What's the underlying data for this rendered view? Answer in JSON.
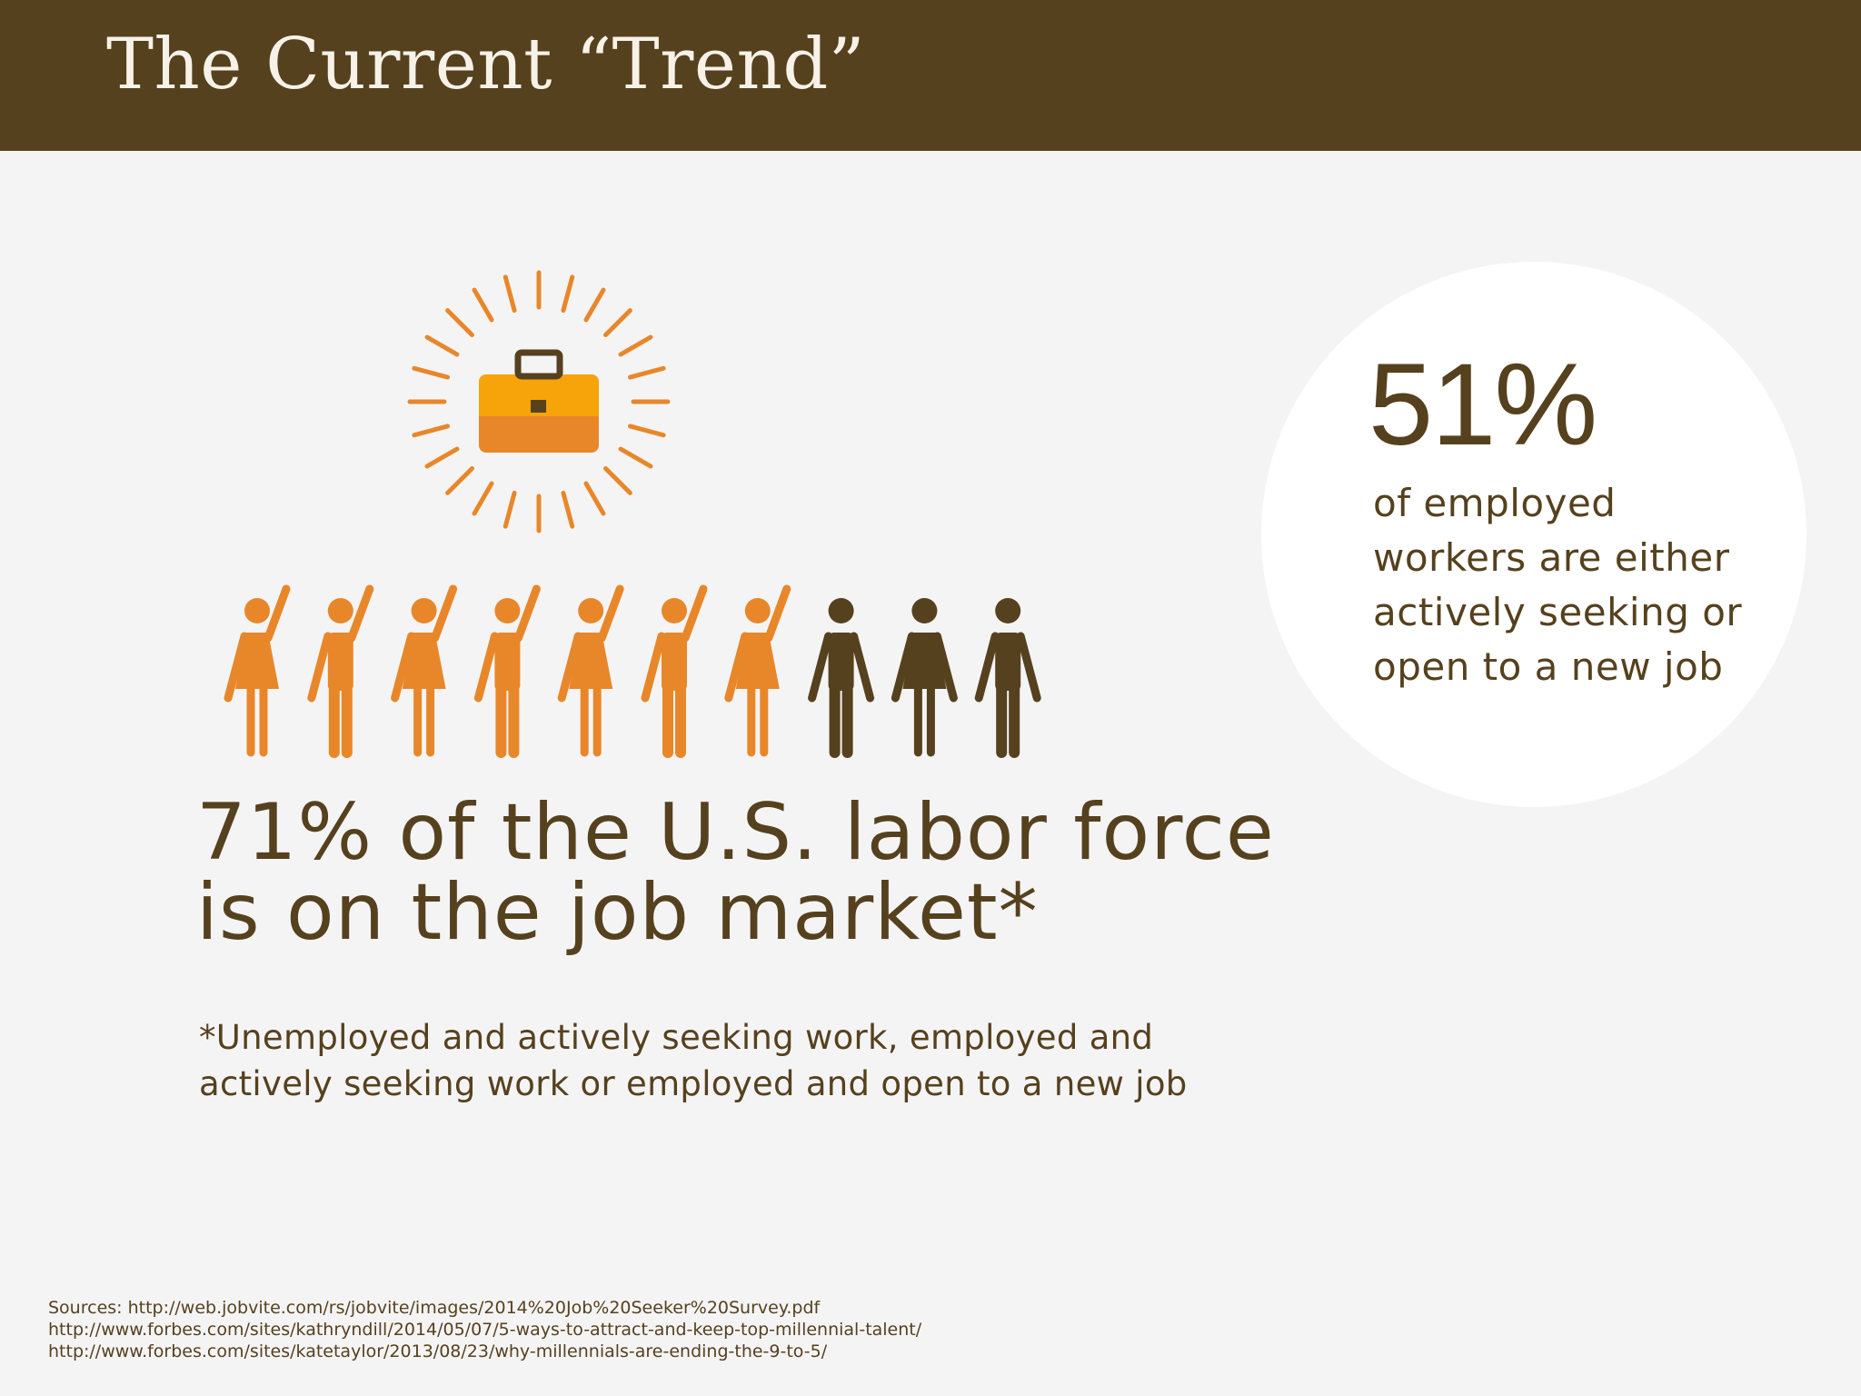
{
  "header": {
    "title": "The Current “Trend”"
  },
  "stat": {
    "value": "51%",
    "description": "of employed workers are either actively seeking or open to a new job"
  },
  "headline": "71% of the U.S. labor force is on the job market*",
  "footnote": "*Unemployed and actively seeking work, employed and actively seeking work or employed and open to a new job",
  "sources": {
    "line1": "Sources: http://web.jobvite.com/rs/jobvite/images/2014%20Job%20Seeker%20Survey.pdf",
    "line2": "http://www.forbes.com/sites/kathryndill/2014/05/07/5-ways-to-attract-and-keep-top-millennial-talent/",
    "line3": "http://www.forbes.com/sites/katetaylor/2013/08/23/why-millennials-are-ending-the-9-to-5/"
  },
  "icons": {
    "illustration": "briefcase-sun-icon",
    "figure": "person-icon"
  },
  "people": [
    {
      "role": "woman",
      "raised": true
    },
    {
      "role": "man",
      "raised": true
    },
    {
      "role": "woman",
      "raised": true
    },
    {
      "role": "man",
      "raised": true
    },
    {
      "role": "woman",
      "raised": true
    },
    {
      "role": "man",
      "raised": true
    },
    {
      "role": "woman",
      "raised": true
    },
    {
      "role": "man",
      "raised": false
    },
    {
      "role": "woman",
      "raised": false
    },
    {
      "role": "man",
      "raised": false
    }
  ],
  "colors": {
    "brand_brown": "#56411e",
    "orange": "#e8872a",
    "briefcase_top": "#f7a30a",
    "background": "#f5f4f5"
  }
}
